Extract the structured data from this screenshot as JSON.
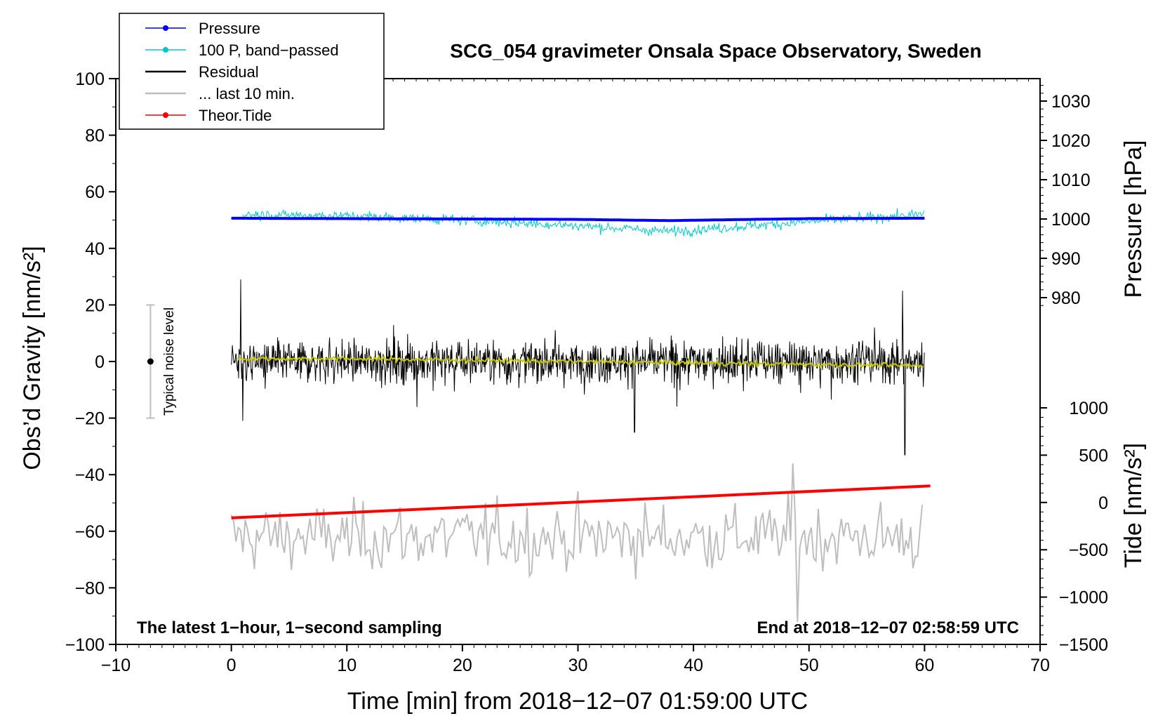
{
  "chart_data": {
    "type": "line",
    "title": "SCG_054 gravimeter Onsala Space Observatory, Sweden",
    "xlabel": "Time [min] from 2018−12−07 01:59:00 UTC",
    "ylabel_left": "Obs’d Gravity [nm/s²]",
    "ylabel_right_top": "Pressure [hPa]",
    "ylabel_right_bottom": "Tide [nm/s²]",
    "xlim": [
      -10,
      70
    ],
    "ylim": [
      -100,
      100
    ],
    "pressure_axis_range": [
      978,
      1035
    ],
    "tide_axis_range": [
      -1500,
      1000
    ],
    "x_ticks": [
      "−10",
      "0",
      "10",
      "20",
      "30",
      "40",
      "50",
      "60",
      "70"
    ],
    "y_ticks": [
      "−100",
      "−80",
      "−60",
      "−40",
      "−20",
      "0",
      "20",
      "40",
      "60",
      "80",
      "100"
    ],
    "pressure_ticks": [
      "980",
      "990",
      "1000",
      "1010",
      "1020",
      "1030"
    ],
    "tide_ticks": [
      "−1500",
      "−1000",
      "−500",
      "0",
      "500",
      "1000"
    ],
    "legend": [
      {
        "label": "Pressure",
        "color": "#0000ff",
        "marker": true
      },
      {
        "label": "100 P, band−passed",
        "color": "#00c8c8",
        "marker": true
      },
      {
        "label": "Residual",
        "color": "#000000",
        "marker": false
      },
      {
        "label": "... last 10 min.",
        "color": "#bebebe",
        "marker": false
      },
      {
        "label": "Theor.Tide",
        "color": "#ff0000",
        "marker": true
      }
    ],
    "series": [
      {
        "name": "Pressure",
        "axis": "pressure_hPa",
        "color": "#0000ff",
        "x": [
          0,
          10,
          20,
          30,
          35,
          38,
          45,
          50,
          60
        ],
        "values": [
          1000.2,
          1000.1,
          1000.0,
          999.9,
          999.7,
          999.6,
          999.9,
          1000.1,
          1000.2
        ]
      },
      {
        "name": "100 P, band−passed",
        "axis": "gravity_nm_s2",
        "color": "#00c8c8",
        "x_range": [
          1,
          60
        ],
        "trend": [
          [
            1,
            52
          ],
          [
            10,
            51.5
          ],
          [
            20,
            50
          ],
          [
            30,
            48
          ],
          [
            38,
            46
          ],
          [
            45,
            48
          ],
          [
            52,
            50
          ],
          [
            60,
            52
          ]
        ],
        "amplitude": 3
      },
      {
        "name": "Residual",
        "axis": "gravity_nm_s2",
        "color": "#000000",
        "x_range": [
          0,
          60
        ],
        "mean": 0,
        "amplitude": 12,
        "extremes": [
          [
            0.8,
            29
          ],
          [
            1.0,
            -21
          ],
          [
            34.9,
            -25
          ],
          [
            58.1,
            25
          ],
          [
            58.3,
            -33
          ]
        ]
      },
      {
        "name": "Residual smoothed",
        "axis": "gravity_nm_s2",
        "color": "#c8c800",
        "x": [
          0,
          10,
          20,
          30,
          40,
          50,
          60
        ],
        "values": [
          1.0,
          1.0,
          0.5,
          0.0,
          -0.5,
          -1.0,
          -1.5
        ]
      },
      {
        "name": "... last 10 min.",
        "axis": "gravity_nm_s2",
        "color": "#bebebe",
        "x_range": [
          0,
          60
        ],
        "mean": -62,
        "amplitude": 11,
        "extremes": [
          [
            48.7,
            -36
          ],
          [
            49.1,
            -92
          ]
        ]
      },
      {
        "name": "Theor.Tide",
        "axis": "tide_nm_s2",
        "color": "#ff0000",
        "x": [
          0,
          60.5
        ],
        "values": [
          -163,
          175
        ]
      }
    ],
    "noise_bar": {
      "x": -7,
      "center": 0,
      "min": -20,
      "max": 20,
      "label": "Typical noise level"
    },
    "annotations": {
      "bottom_left": "The latest 1−hour, 1−second sampling",
      "bottom_right": "End at 2018−12−07 02:58:59 UTC"
    }
  }
}
